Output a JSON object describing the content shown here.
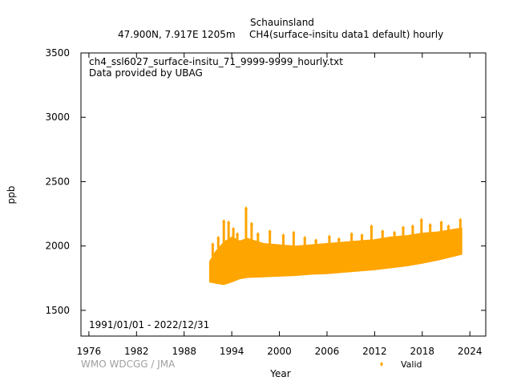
{
  "chart_data": {
    "type": "scatter",
    "title": "Schauinsland",
    "subtitle_left": "47.900N, 7.917E 1205m",
    "subtitle_right": "CH4(surface-insitu data1 default) hourly",
    "file_name": "ch4_ssl6027_surface-insitu_71_9999-9999_hourly.txt",
    "provider": "Data provided by UBAG",
    "period": "1991/01/01 - 2022/12/31",
    "credit": "WMO WDCGG / JMA",
    "xlabel": "Year",
    "ylabel": "ppb",
    "xlim": [
      1975,
      2026
    ],
    "ylim": [
      1300,
      3500
    ],
    "x_ticks": [
      1976,
      1982,
      1988,
      1994,
      2000,
      2006,
      2012,
      2018,
      2024
    ],
    "y_ticks": [
      1500,
      2000,
      2500,
      3000,
      3500
    ],
    "legend": {
      "label": "Valid",
      "position": "bottom-right"
    },
    "series": [
      {
        "name": "Valid",
        "color": "#FFA500",
        "band": [
          {
            "x": 1991.2,
            "low": 1720,
            "high": 1880
          },
          {
            "x": 1992.0,
            "low": 1710,
            "high": 1960
          },
          {
            "x": 1993.0,
            "low": 1700,
            "high": 2030
          },
          {
            "x": 1994.0,
            "low": 1720,
            "high": 2070
          },
          {
            "x": 1995.0,
            "low": 1745,
            "high": 2040
          },
          {
            "x": 1996.0,
            "low": 1755,
            "high": 2060
          },
          {
            "x": 1998.0,
            "low": 1760,
            "high": 2020
          },
          {
            "x": 2000.0,
            "low": 1765,
            "high": 2010
          },
          {
            "x": 2002.0,
            "low": 1770,
            "high": 2000
          },
          {
            "x": 2004.0,
            "low": 1780,
            "high": 2010
          },
          {
            "x": 2006.0,
            "low": 1785,
            "high": 2020
          },
          {
            "x": 2008.0,
            "low": 1795,
            "high": 2030
          },
          {
            "x": 2010.0,
            "low": 1805,
            "high": 2040
          },
          {
            "x": 2012.0,
            "low": 1815,
            "high": 2050
          },
          {
            "x": 2014.0,
            "low": 1830,
            "high": 2070
          },
          {
            "x": 2016.0,
            "low": 1845,
            "high": 2080
          },
          {
            "x": 2018.0,
            "low": 1865,
            "high": 2100
          },
          {
            "x": 2020.0,
            "low": 1890,
            "high": 2110
          },
          {
            "x": 2022.0,
            "low": 1920,
            "high": 2130
          },
          {
            "x": 2022.99,
            "low": 1935,
            "high": 2140
          }
        ],
        "spikes": [
          {
            "x": 1991.6,
            "y": 2010
          },
          {
            "x": 1992.3,
            "y": 2060
          },
          {
            "x": 1993.0,
            "y": 2190
          },
          {
            "x": 1993.6,
            "y": 2180
          },
          {
            "x": 1994.2,
            "y": 2130
          },
          {
            "x": 1994.7,
            "y": 2090
          },
          {
            "x": 1995.8,
            "y": 2290
          },
          {
            "x": 1996.5,
            "y": 2170
          },
          {
            "x": 1997.3,
            "y": 2090
          },
          {
            "x": 1998.8,
            "y": 2110
          },
          {
            "x": 2000.5,
            "y": 2080
          },
          {
            "x": 2001.8,
            "y": 2100
          },
          {
            "x": 2003.2,
            "y": 2060
          },
          {
            "x": 2004.6,
            "y": 2040
          },
          {
            "x": 2006.3,
            "y": 2070
          },
          {
            "x": 2007.5,
            "y": 2050
          },
          {
            "x": 2009.1,
            "y": 2090
          },
          {
            "x": 2010.4,
            "y": 2080
          },
          {
            "x": 2011.6,
            "y": 2150
          },
          {
            "x": 2013.0,
            "y": 2110
          },
          {
            "x": 2014.5,
            "y": 2100
          },
          {
            "x": 2015.6,
            "y": 2140
          },
          {
            "x": 2016.8,
            "y": 2150
          },
          {
            "x": 2017.9,
            "y": 2200
          },
          {
            "x": 2019.0,
            "y": 2160
          },
          {
            "x": 2020.4,
            "y": 2180
          },
          {
            "x": 2021.3,
            "y": 2150
          },
          {
            "x": 2022.8,
            "y": 2200
          }
        ]
      }
    ]
  }
}
